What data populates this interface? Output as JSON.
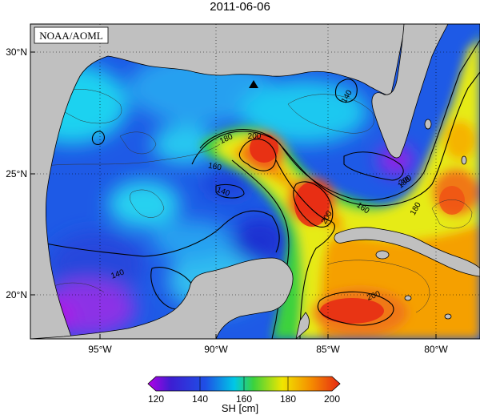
{
  "title": "2011-06-06",
  "credit": "NOAA/AOML",
  "map": {
    "lat_ticks": [
      "30°N",
      "25°N",
      "20°N"
    ],
    "lon_ticks": [
      "95°W",
      "90°W",
      "85°W",
      "80°W"
    ],
    "contour_labels": [
      "140",
      "140",
      "140",
      "160",
      "160",
      "180",
      "180",
      "180",
      "200",
      "200",
      "200",
      "200"
    ],
    "colors": {
      "land": "#c0c0c0",
      "low": "#1e3cd8",
      "mid": "#00c8e6",
      "green": "#3cd23c",
      "yellow": "#f0e600",
      "orange": "#f58c00",
      "high": "#e62814",
      "min": "#b400e6"
    }
  },
  "colorbar": {
    "ticks": [
      "120",
      "140",
      "160",
      "180",
      "200"
    ],
    "label": "SH [cm]",
    "range": [
      120,
      200
    ]
  }
}
